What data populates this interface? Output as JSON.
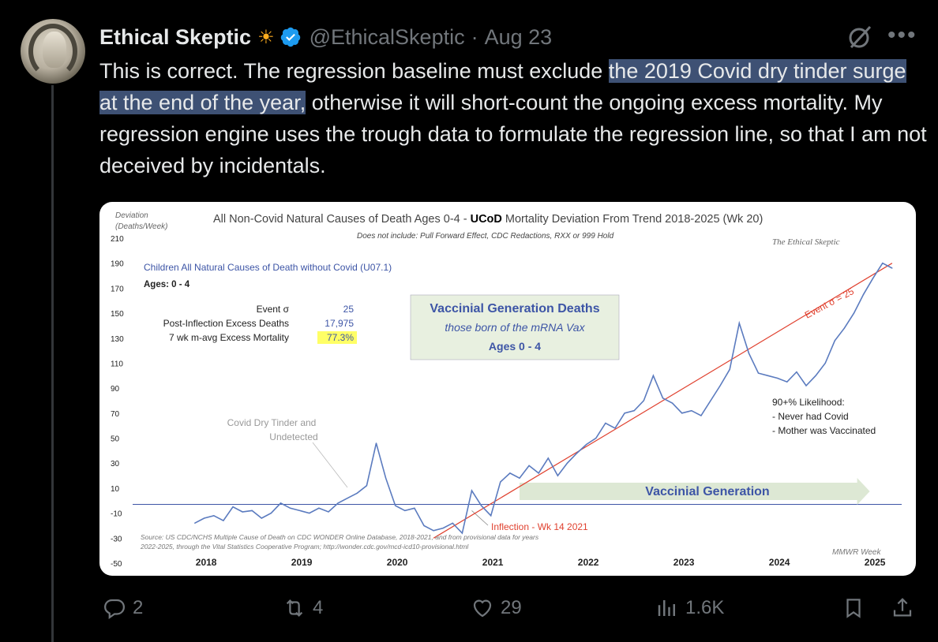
{
  "tweet": {
    "author_name": "Ethical Skeptic",
    "author_emoji": "☀",
    "handle": "@EthicalSkeptic",
    "separator": "·",
    "date": "Aug 23",
    "text_before": "This is correct. The regression baseline must exclude ",
    "text_highlight": "the 2019 Covid dry tinder surge at the end of the year,",
    "text_after": " otherwise it will short-count the ongoing excess mortality. My regression engine uses the trough data to formulate the regression line, so that I am not deceived by incidentals.",
    "more_label": "•••"
  },
  "actions": {
    "replies": "2",
    "reposts": "4",
    "likes": "29",
    "views": "1.6K"
  },
  "colors": {
    "accent": "#1d9bf0",
    "highlight": "#3e5174",
    "muted": "#71767b",
    "series": "#5b7bbf",
    "trend": "#e0412f"
  },
  "chart_data": {
    "type": "line",
    "title_prefix": "All Non-Covid Natural Causes of Death Ages 0-4 - ",
    "title_bold": "UCoD",
    "title_suffix": " Mortality Deviation From Trend  2018-2025 (Wk 20)",
    "subtitle": "Does not include: Pull Forward Effect, CDC Redactions, RXX or 999 Hold",
    "ylabel_line1": "Deviation",
    "ylabel_line2": "(Deaths/Week)",
    "watermark": "The Ethical Skeptic",
    "xlabel": "MMWR Week",
    "yticks": [
      210,
      190,
      170,
      150,
      130,
      110,
      90,
      70,
      50,
      30,
      10,
      -10,
      -30,
      -50
    ],
    "ylim": [
      -50,
      210
    ],
    "xticks": [
      "2018",
      "2019",
      "2020",
      "2021",
      "2022",
      "2023",
      "2024",
      "2025"
    ],
    "series_name": "Children All Natural Causes of Death without Covid (U07.1)",
    "ages_label": "Ages: 0 - 4",
    "stats": [
      {
        "label": "Event σ",
        "value": "25"
      },
      {
        "label": "Post-Inflection Excess Deaths",
        "value": "17,975"
      },
      {
        "label": "7 wk m-avg Excess Mortality",
        "value": "77.3%"
      }
    ],
    "box_title": "Vaccinial Generation  Deaths",
    "box_sub": "those born of the mRNA Vax",
    "box_ages": "Ages 0 - 4",
    "annotation_dry_tinder": [
      "Covid Dry Tinder and",
      "Undetected"
    ],
    "trend_label": "Event σ = 25",
    "likelihood": [
      "90+% Likelihood:",
      "- Never had Covid",
      "- Mother was Vaccinated"
    ],
    "arrow_label": "Vaccinial Generation",
    "inflection_label": "Inflection - Wk 14 2021",
    "source": [
      "Source: US CDC/NCHS Multiple Cause of Death on CDC WONDER Online Database, 2018-2021, and from provisional data for years",
      "2022-2025, through the Vital Statistics Cooperative Program; http://wonder.cdc.gov/mcd-icd10-provisional.html"
    ],
    "x": [
      2018.0,
      2018.1,
      2018.2,
      2018.3,
      2018.4,
      2018.5,
      2018.6,
      2018.7,
      2018.8,
      2018.9,
      2019.0,
      2019.1,
      2019.2,
      2019.3,
      2019.4,
      2019.5,
      2019.6,
      2019.7,
      2019.8,
      2019.9,
      2020.0,
      2020.1,
      2020.2,
      2020.3,
      2020.4,
      2020.5,
      2020.6,
      2020.7,
      2020.8,
      2020.9,
      2021.0,
      2021.1,
      2021.2,
      2021.3,
      2021.4,
      2021.5,
      2021.6,
      2021.7,
      2021.8,
      2021.9,
      2022.0,
      2022.1,
      2022.2,
      2022.3,
      2022.4,
      2022.5,
      2022.6,
      2022.7,
      2022.8,
      2022.9,
      2023.0,
      2023.1,
      2023.2,
      2023.3,
      2023.4,
      2023.5,
      2023.6,
      2023.7,
      2023.8,
      2023.9,
      2024.0,
      2024.1,
      2024.2,
      2024.3,
      2024.4,
      2024.5,
      2024.6,
      2024.7,
      2024.8,
      2024.9,
      2025.0,
      2025.1,
      2025.2,
      2025.3
    ],
    "y": [
      -18,
      -14,
      -12,
      -16,
      -5,
      -9,
      -8,
      -14,
      -10,
      -2,
      -6,
      -8,
      -10,
      -6,
      -9,
      -2,
      2,
      6,
      12,
      46,
      18,
      -4,
      -8,
      -6,
      -20,
      -24,
      -22,
      -18,
      -26,
      8,
      -4,
      -12,
      15,
      22,
      18,
      28,
      22,
      34,
      20,
      30,
      38,
      45,
      50,
      62,
      58,
      70,
      72,
      80,
      100,
      82,
      78,
      70,
      72,
      68,
      80,
      92,
      105,
      142,
      118,
      102,
      100,
      98,
      95,
      103,
      92,
      100,
      110,
      128,
      138,
      150,
      165,
      178,
      190,
      186
    ],
    "trend_x": [
      2020.5,
      2025.3
    ],
    "trend_y": [
      -30,
      190
    ]
  }
}
